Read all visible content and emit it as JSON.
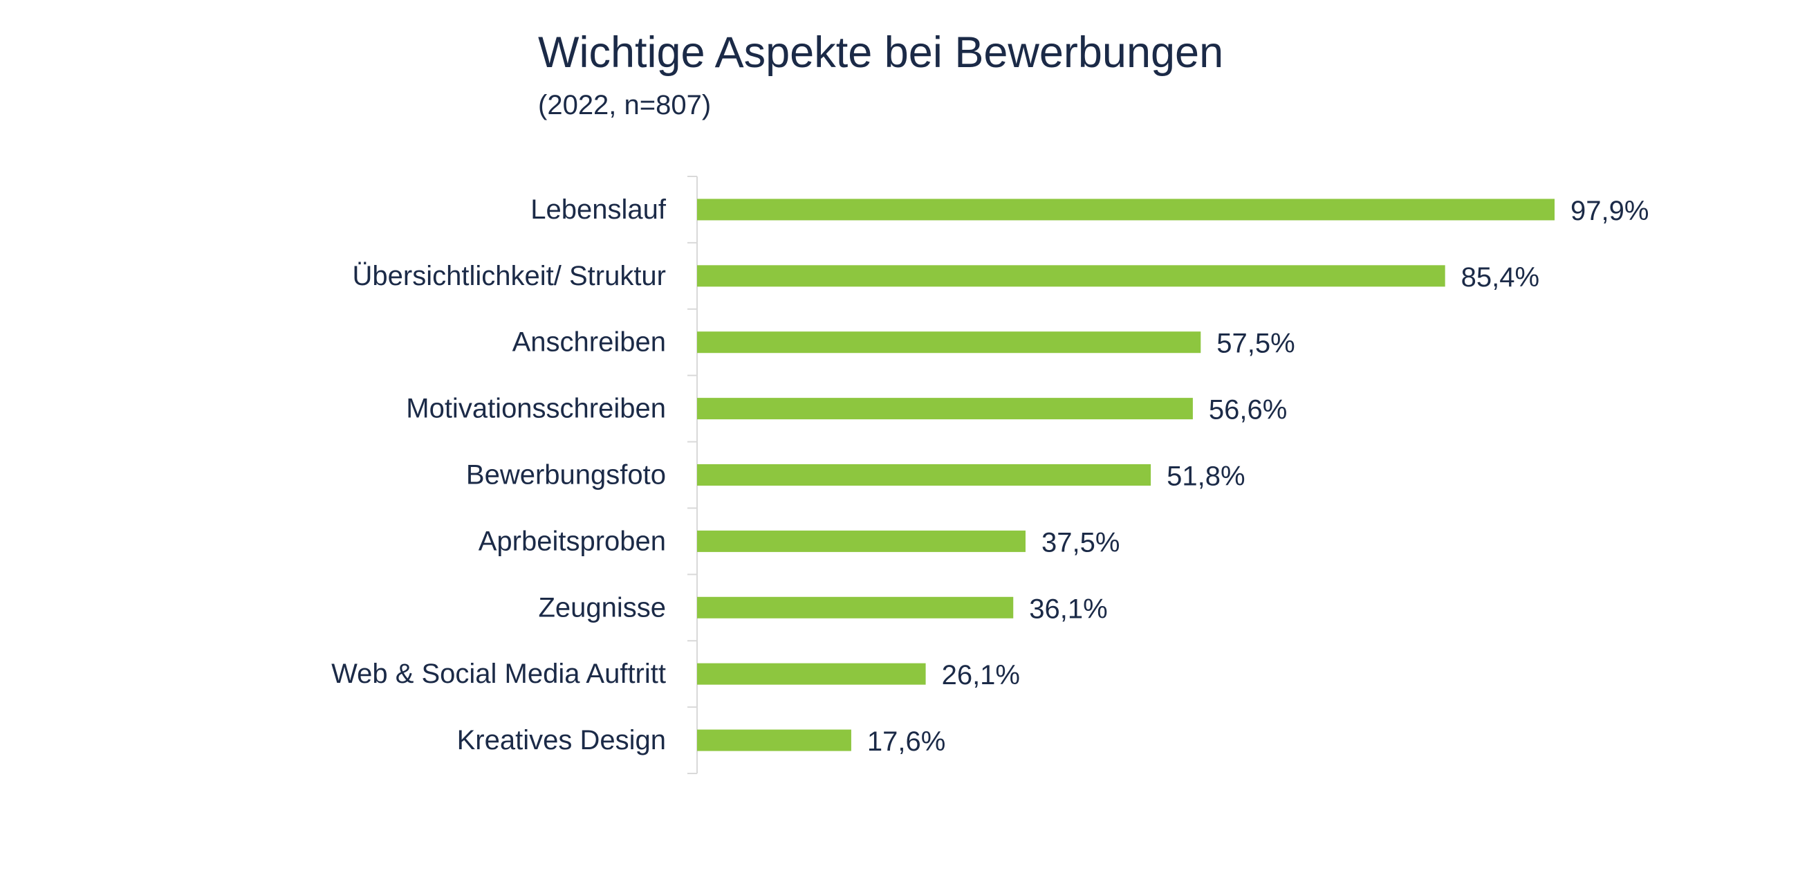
{
  "chart_data": {
    "type": "bar",
    "orientation": "horizontal",
    "title": "Wichtige Aspekte bei Bewerbungen",
    "subtitle": "(2022, n=807)",
    "xlabel": "",
    "ylabel": "",
    "categories": [
      "Lebenslauf",
      "Übersichtlichkeit/ Struktur",
      "Anschreiben",
      "Motivationsschreiben",
      "Bewerbungsfoto",
      "Aprbeitsproben",
      "Zeugnisse",
      "Web & Social Media Auftritt",
      "Kreatives Design"
    ],
    "values": [
      97.9,
      85.4,
      57.5,
      56.6,
      51.8,
      37.5,
      36.1,
      26.1,
      17.6
    ],
    "value_labels": [
      "97,9%",
      "85,4%",
      "57,5%",
      "56,6%",
      "51,8%",
      "37,5%",
      "36,1%",
      "26,1%",
      "17,6%"
    ],
    "xlim": [
      0,
      100
    ],
    "grid": false,
    "legend": "none",
    "colors": {
      "bar": "#8dc63f",
      "text": "#1b2a47",
      "axis": "#d9d9d9"
    }
  }
}
